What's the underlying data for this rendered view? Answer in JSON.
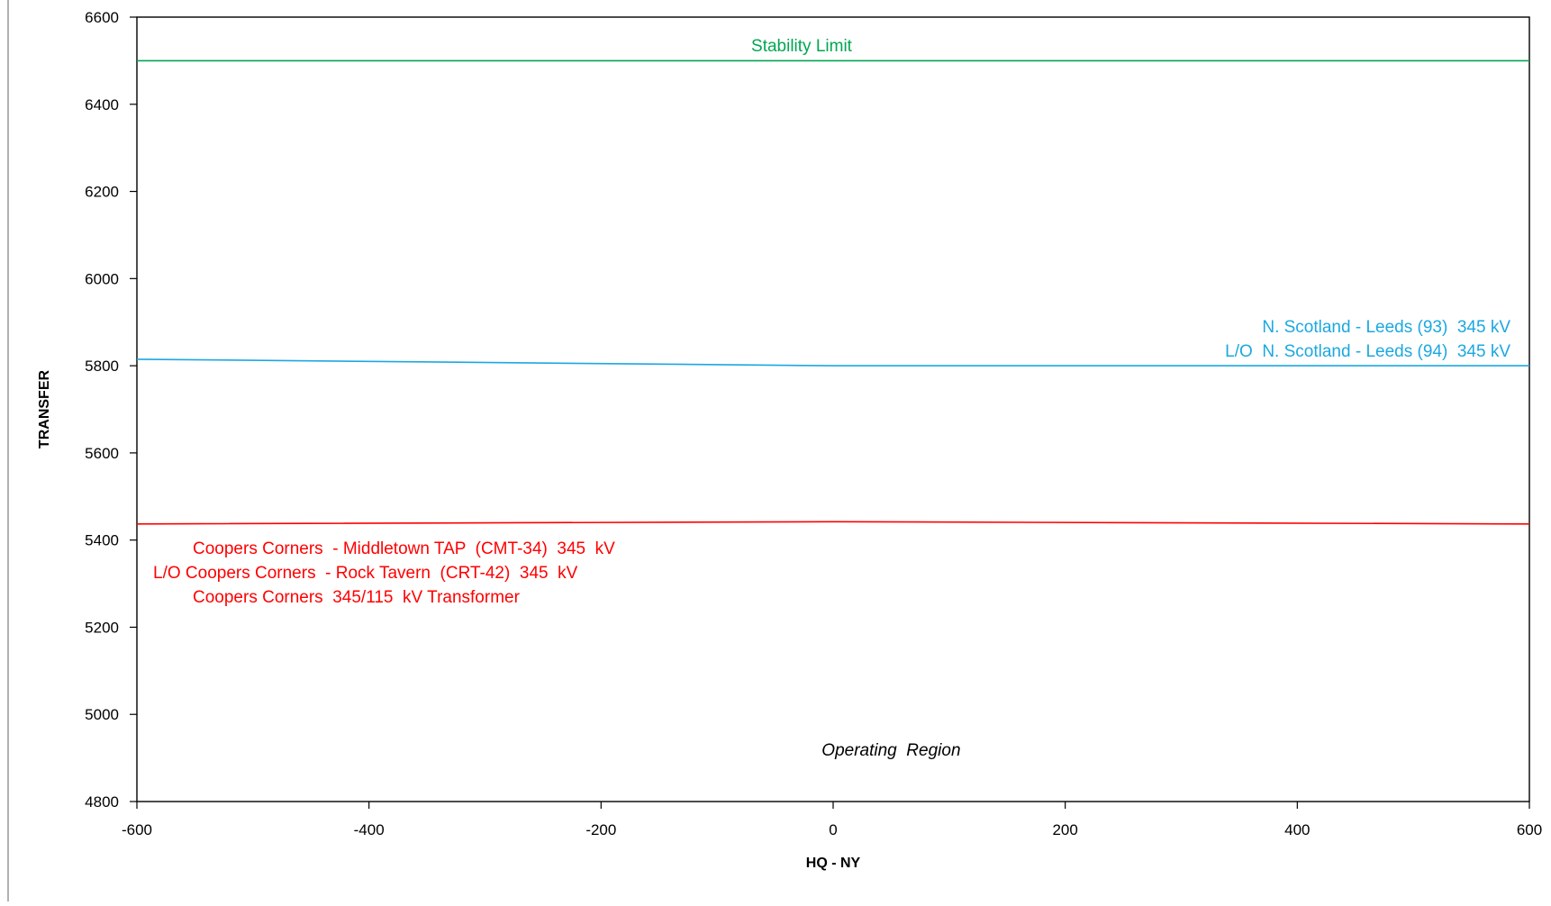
{
  "chart_data": {
    "type": "line",
    "title": "",
    "xlabel": "HQ - NY",
    "ylabel": "TRANSFER",
    "xlim": [
      -600,
      600
    ],
    "ylim": [
      4800,
      6600
    ],
    "x_ticks": [
      -600,
      -400,
      -200,
      0,
      200,
      400,
      600
    ],
    "y_ticks": [
      4800,
      5000,
      5200,
      5400,
      5600,
      5800,
      6000,
      6200,
      6400,
      6600
    ],
    "grid": false,
    "legend": "none",
    "series": [
      {
        "color": "#00A651",
        "x": [
          -600,
          0,
          600
        ],
        "y": [
          6500,
          6500,
          6500
        ],
        "label_lines": [
          "Stability Limit"
        ]
      },
      {
        "color": "#1BA8E0",
        "x": [
          -600,
          0,
          600
        ],
        "y": [
          5815,
          5800,
          5800
        ],
        "label_lines": [
          "N. Scotland - Leeds (93)  345 kV",
          "L/O  N. Scotland - Leeds (94)  345 kV"
        ]
      },
      {
        "color": "#FF0000",
        "x": [
          -600,
          0,
          600
        ],
        "y": [
          5437,
          5442,
          5437
        ],
        "label_lines": [
          "Coopers Corners  - Middletown TAP  (CMT-34)  345  kV",
          "L/O Coopers Corners  - Rock Tavern  (CRT-42)  345  kV",
          "Coopers Corners  345/115  kV Transformer"
        ]
      }
    ],
    "annotations": [
      {
        "text": "Operating  Region",
        "x": 50,
        "y": 4920,
        "style": "italic"
      }
    ]
  }
}
